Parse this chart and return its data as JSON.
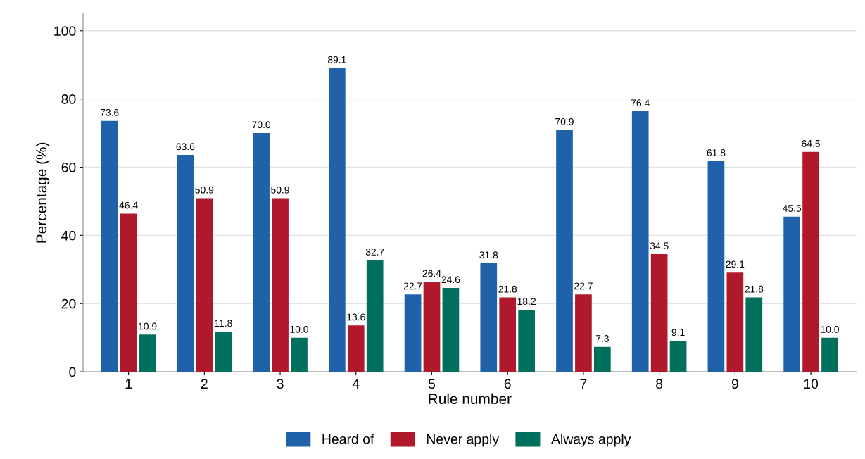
{
  "chart_data": {
    "type": "bar",
    "xlabel": "Rule number",
    "ylabel": "Percentage (%)",
    "categories": [
      "1",
      "2",
      "3",
      "4",
      "5",
      "6",
      "7",
      "8",
      "9",
      "10"
    ],
    "series": [
      {
        "name": "Heard of",
        "color": "#2062aa",
        "values": [
          73.6,
          63.6,
          70.0,
          89.1,
          22.7,
          31.8,
          70.9,
          76.4,
          61.8,
          45.5
        ],
        "value_labels": [
          "73.6",
          "63.6",
          "70.0",
          "89.1",
          "22.7",
          "31.8",
          "70.9",
          "76.4",
          "61.8",
          "45.5"
        ]
      },
      {
        "name": "Never apply",
        "color": "#b0182c",
        "values": [
          46.4,
          50.9,
          50.9,
          13.6,
          26.4,
          21.8,
          22.7,
          34.5,
          29.1,
          64.5
        ],
        "value_labels": [
          "46.4",
          "50.9",
          "50.9",
          "13.6",
          "26.4",
          "21.8",
          "22.7",
          "34.5",
          "29.1",
          "64.5"
        ]
      },
      {
        "name": "Always apply",
        "color": "#006f5c",
        "values": [
          10.9,
          11.8,
          10.0,
          32.7,
          24.6,
          18.2,
          7.3,
          9.1,
          21.8,
          10.0
        ],
        "value_labels": [
          "10.9",
          "11.8",
          "10.0",
          "32.7",
          "24.6",
          "18.2",
          "7.3",
          "9.1",
          "21.8",
          "10.0"
        ]
      }
    ],
    "ylim": [
      0,
      105
    ],
    "yticks": [
      0,
      20,
      40,
      60,
      80,
      100
    ],
    "grid": "y",
    "legend": "bottom"
  }
}
